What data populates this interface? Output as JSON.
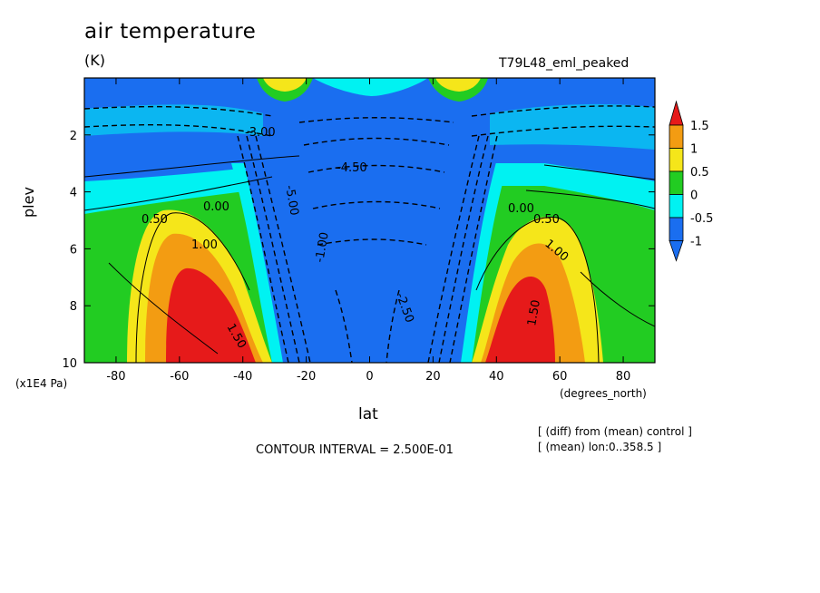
{
  "chart_data": {
    "type": "heatmap",
    "title": "air temperature",
    "units": "(K)",
    "run_label": "T79L48_eml_peaked",
    "xlabel": "lat",
    "x_units": "(degrees_north)",
    "ylabel": "plev",
    "y_units": "(x1E4 Pa)",
    "x_range": [
      -90,
      90
    ],
    "y_range": [
      0,
      10
    ],
    "y_inverted": true,
    "x_ticks": [
      "-80",
      "-60",
      "-40",
      "-20",
      "0",
      "20",
      "40",
      "60",
      "80"
    ],
    "x_tick_values": [
      -80,
      -60,
      -40,
      -20,
      0,
      20,
      40,
      60,
      80
    ],
    "y_ticks": [
      "2",
      "4",
      "6",
      "8",
      "10"
    ],
    "y_tick_values": [
      2,
      4,
      6,
      8,
      10
    ],
    "colorbar": {
      "labels": [
        "1.5",
        "1",
        "0.5",
        "0",
        "-0.5",
        "-1"
      ],
      "colors": [
        "#e61a1a",
        "#f39c12",
        "#f5e61a",
        "#22cc22",
        "#00f2f2",
        "#1a6ef0"
      ]
    },
    "contour_labels": [
      "0.00",
      "0.50",
      "1.00",
      "1.50",
      "-4.50",
      "-5.00",
      "-3.00",
      "-2.50",
      "-1.00"
    ],
    "contour_interval": "CONTOUR INTERVAL = 2.500E-01",
    "notes": [
      "[ (diff) from (mean) control ]",
      "[ (mean) lon:0..358.5 ]"
    ]
  }
}
